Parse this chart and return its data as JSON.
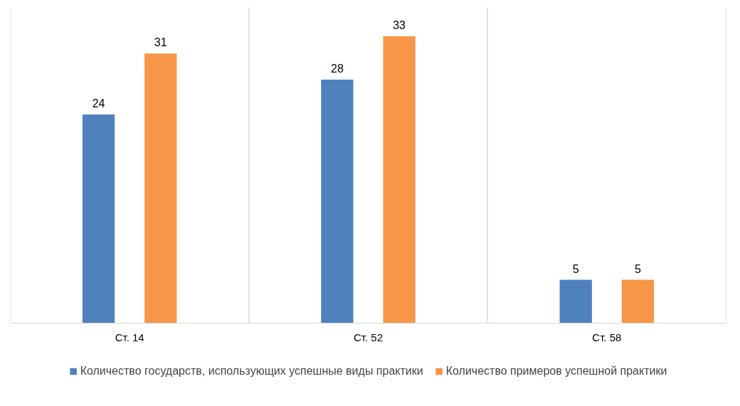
{
  "chart_data": {
    "type": "bar",
    "categories": [
      "Ст. 14",
      "Ст. 52",
      "Ст. 58"
    ],
    "series": [
      {
        "name": "Количество государств, использующих успешные виды практики",
        "color": "#4f81bd",
        "values": [
          24,
          28,
          5
        ]
      },
      {
        "name": "Количество примеров успешной практики",
        "color": "#f79646",
        "values": [
          31,
          33,
          5
        ]
      }
    ],
    "data_labels": true,
    "grid": "x",
    "legend": "bottom"
  }
}
